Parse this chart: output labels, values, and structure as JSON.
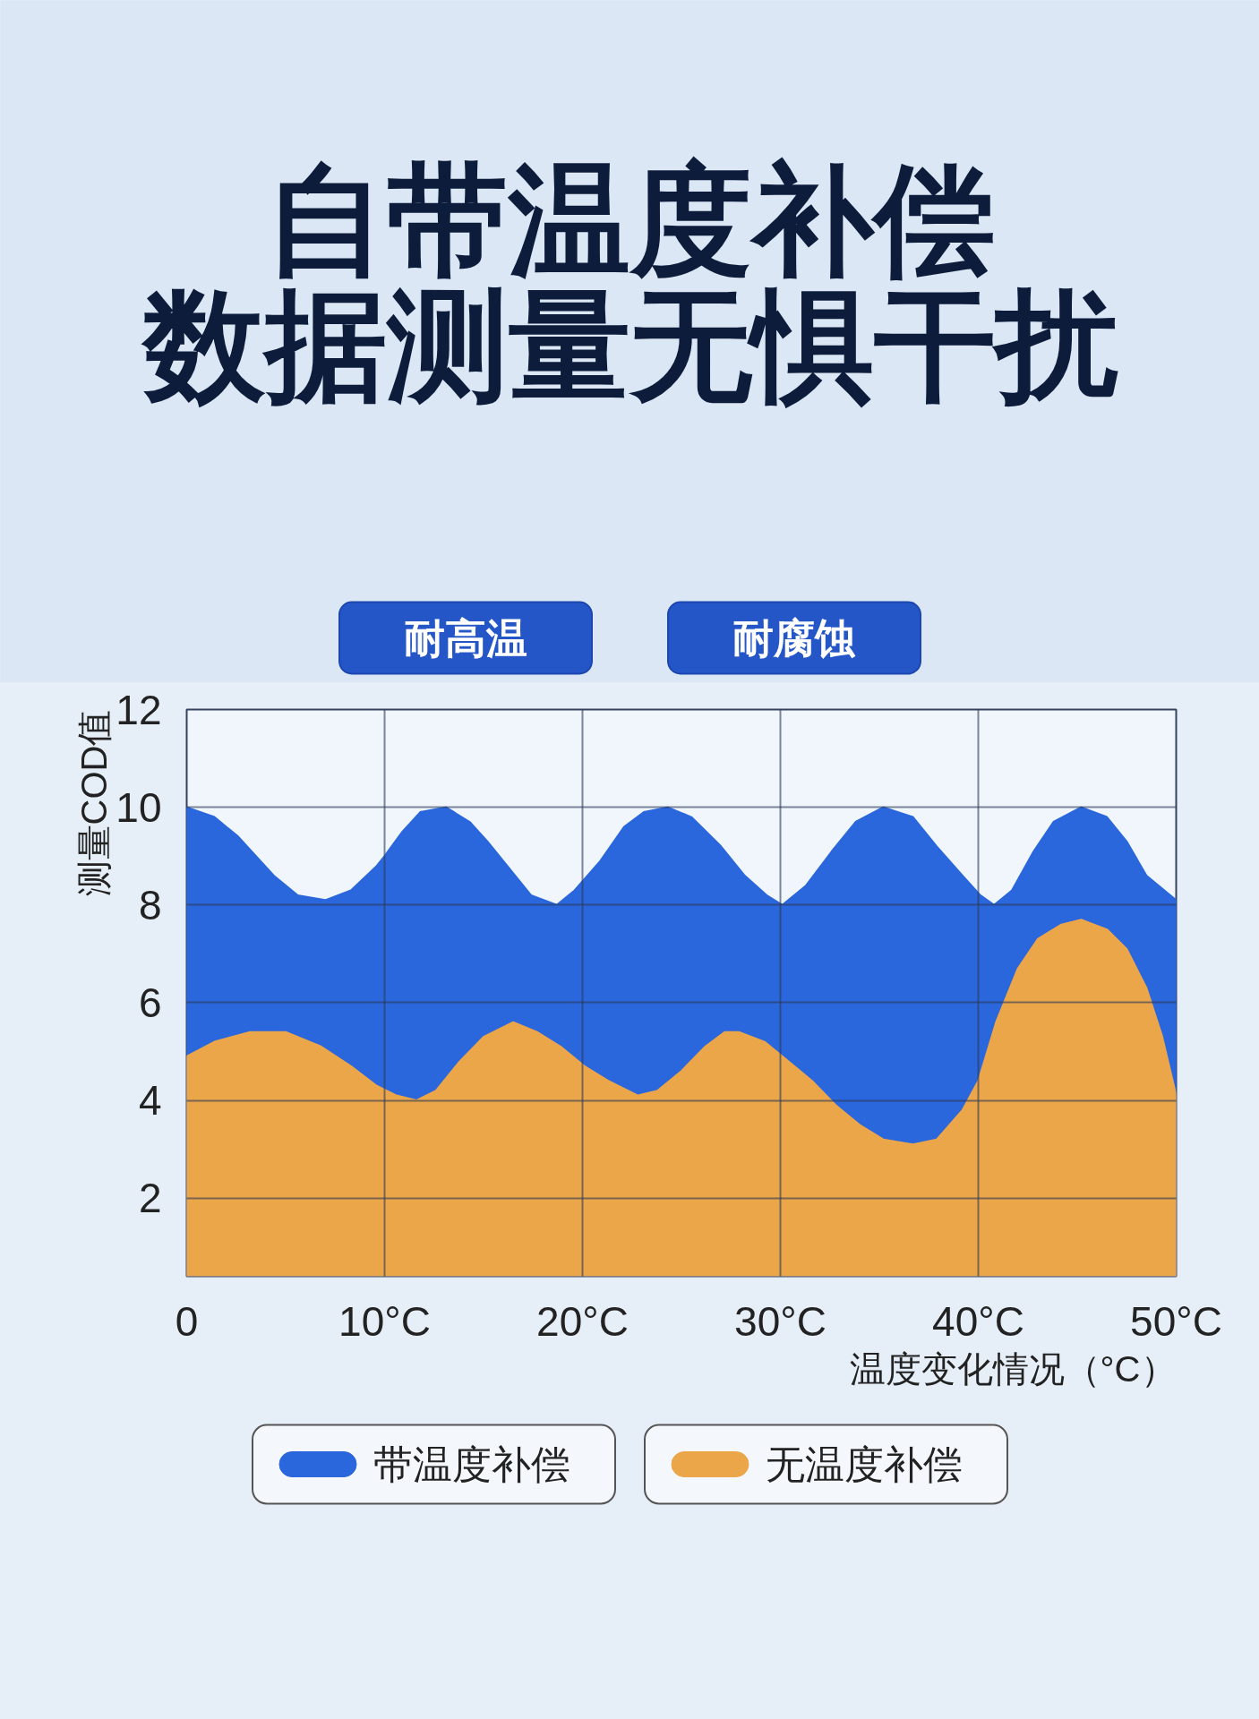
{
  "chart_data": {
    "type": "area",
    "title": "自带温度补偿",
    "subtitle": "数据测量无惧干扰",
    "annotations": [
      "耐高温",
      "耐腐蚀"
    ],
    "xlabel": "温度变化情况（°C）",
    "ylabel": "测量COD值",
    "series": [
      {
        "name": "带温度补偿",
        "color": "#2a66dc",
        "x": [
          0,
          1.4,
          2.6,
          3.5,
          4.4,
          5.6,
          7.0,
          8.3,
          9.6,
          10.0,
          10.9,
          11.8,
          13.1,
          14.3,
          15.2,
          16.2,
          17.4,
          18.7,
          19.6,
          20.9,
          22.1,
          23.1,
          24.3,
          25.5,
          27.0,
          28.2,
          29.3,
          30.1,
          31.3,
          32.6,
          33.8,
          35.2,
          36.7,
          37.9,
          39.2,
          40.1,
          40.8,
          41.7,
          42.8,
          43.8,
          45.2,
          46.5,
          47.5,
          48.5,
          50
        ],
        "values": [
          10,
          9.8,
          9.4,
          9.0,
          8.6,
          8.2,
          8.1,
          8.3,
          8.8,
          9.0,
          9.5,
          9.9,
          10,
          9.7,
          9.3,
          8.8,
          8.2,
          8.0,
          8.3,
          8.9,
          9.6,
          9.9,
          10,
          9.8,
          9.2,
          8.6,
          8.2,
          8.0,
          8.4,
          9.1,
          9.7,
          10,
          9.8,
          9.2,
          8.6,
          8.2,
          8.0,
          8.3,
          9.1,
          9.7,
          10,
          9.8,
          9.3,
          8.6,
          8.1
        ]
      },
      {
        "name": "无温度补偿",
        "color": "#eca64a",
        "x": [
          0,
          1.4,
          3.2,
          5.0,
          6.8,
          8.3,
          9.6,
          10.6,
          11.6,
          12.6,
          13.8,
          15.0,
          16.5,
          17.7,
          18.9,
          20.1,
          21.3,
          22.8,
          23.8,
          25.0,
          26.2,
          27.2,
          27.9,
          29.2,
          30.4,
          31.6,
          32.8,
          34.0,
          35.2,
          36.7,
          37.9,
          39.2,
          40.0,
          40.9,
          42.0,
          43.0,
          44.2,
          45.2,
          46.5,
          47.5,
          48.5,
          49.3,
          50
        ],
        "values": [
          4.9,
          5.2,
          5.4,
          5.4,
          5.1,
          4.7,
          4.3,
          4.1,
          4.0,
          4.2,
          4.8,
          5.3,
          5.6,
          5.4,
          5.1,
          4.7,
          4.4,
          4.1,
          4.2,
          4.6,
          5.1,
          5.4,
          5.4,
          5.2,
          4.8,
          4.4,
          3.9,
          3.5,
          3.2,
          3.1,
          3.2,
          3.8,
          4.4,
          5.6,
          6.7,
          7.3,
          7.6,
          7.7,
          7.5,
          7.1,
          6.3,
          5.3,
          4.1
        ]
      }
    ],
    "xlim": [
      0,
      50
    ],
    "xticks": [
      0,
      {
        "value": 10,
        "label": "10°C"
      },
      {
        "value": 20,
        "label": "20°C"
      },
      {
        "value": 30,
        "label": "30°C"
      },
      {
        "value": 40,
        "label": "40°C"
      },
      {
        "value": 50,
        "label": "50°C"
      }
    ],
    "ylim": [
      0.4,
      12
    ],
    "yticks": [
      2,
      4,
      6,
      8,
      10,
      12
    ],
    "grid": true,
    "legend": "bottom"
  }
}
